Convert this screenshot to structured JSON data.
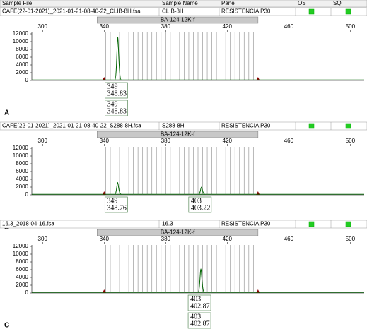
{
  "columns": [
    "Sample File",
    "Sample Name",
    "Panel",
    "OS",
    "SQ"
  ],
  "chart_data": [
    {
      "type": "electropherogram",
      "panel_label": "A",
      "sample_file": "CAFE(22-01-2021)_2021-01-21-08-40-22_CLIB-8H.fsa",
      "sample_name": "CLIB-8H",
      "panel": "RESISTENCIA P30",
      "marker": "BA-124-12K-f",
      "marker_range": [
        340,
        440
      ],
      "bins": [
        341,
        344,
        347,
        350,
        353,
        356,
        359,
        362,
        365,
        368,
        371,
        374,
        377,
        380,
        383,
        386,
        389,
        392,
        395,
        398,
        401,
        404,
        407,
        410,
        413,
        416,
        419,
        422,
        425,
        428,
        431,
        434,
        437
      ],
      "xlim": [
        293,
        509
      ],
      "xticks": [
        300,
        340,
        380,
        420,
        460,
        500
      ],
      "ylim": [
        0,
        12000
      ],
      "yticks": [
        0,
        2000,
        4000,
        6000,
        8000,
        10000,
        12000
      ],
      "color": "#006400",
      "peaks": [
        {
          "x": 348.83,
          "height": 11200
        }
      ],
      "label_boxes": [
        {
          "allele": 349,
          "size": 348.83
        },
        {
          "allele": 349,
          "size": 348.83
        }
      ]
    },
    {
      "type": "electropherogram",
      "panel_label": "B",
      "sample_file": "CAFE(22-01-2021)_2021-01-21-08-40-22_S288-8H.fsa",
      "sample_name": "S288-8H",
      "panel": "RESISTENCIA P30",
      "marker": "BA-124-12K-f",
      "marker_range": [
        340,
        440
      ],
      "bins": [
        341,
        344,
        347,
        350,
        353,
        356,
        359,
        362,
        365,
        368,
        371,
        374,
        377,
        380,
        383,
        386,
        389,
        392,
        395,
        398,
        401,
        404,
        407,
        410,
        413,
        416,
        419,
        422,
        425,
        428,
        431,
        434,
        437
      ],
      "xlim": [
        293,
        509
      ],
      "xticks": [
        300,
        340,
        380,
        420,
        460,
        500
      ],
      "ylim": [
        0,
        12000
      ],
      "yticks": [
        0,
        2000,
        4000,
        6000,
        8000,
        10000,
        12000
      ],
      "color": "#006400",
      "peaks": [
        {
          "x": 348.76,
          "height": 3200
        },
        {
          "x": 403.22,
          "height": 2000
        }
      ],
      "label_boxes": [
        {
          "allele": 349,
          "size": 348.76
        },
        {
          "allele": 403,
          "size": 403.22
        }
      ]
    },
    {
      "type": "electropherogram",
      "panel_label": "C",
      "sample_file": "16.3_2018-04-16.fsa",
      "sample_name": "16.3",
      "panel": "RESISTENCIA P30",
      "marker": "BA-124-12K-f",
      "marker_range": [
        340,
        440
      ],
      "bins": [
        341,
        344,
        347,
        350,
        353,
        356,
        359,
        362,
        365,
        368,
        371,
        374,
        377,
        380,
        383,
        386,
        389,
        392,
        395,
        398,
        401,
        404,
        407,
        410,
        413,
        416,
        419,
        422,
        425,
        428,
        431,
        434,
        437
      ],
      "xlim": [
        293,
        509
      ],
      "xticks": [
        300,
        340,
        380,
        420,
        460,
        500
      ],
      "ylim": [
        0,
        12000
      ],
      "yticks": [
        0,
        2000,
        4000,
        6000,
        8000,
        10000,
        12000
      ],
      "color": "#006400",
      "peaks": [
        {
          "x": 402.87,
          "height": 6200
        }
      ],
      "label_boxes": [
        {
          "allele": 403,
          "size": 402.87
        },
        {
          "allele": 403,
          "size": 402.87
        }
      ]
    }
  ]
}
